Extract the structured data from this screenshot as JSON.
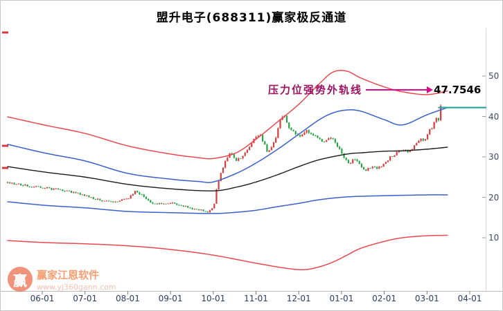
{
  "title": "盟升电子(688311)赢家极反通道",
  "annotation": {
    "label": "压力位强势外轨线",
    "value": "47.7546",
    "arrow_color": "#dc0b8c",
    "label_color": "#9c1160",
    "value_color": "#000000"
  },
  "watermark": {
    "logo_char": "赢",
    "brand": "赢家江恩软件",
    "url": "www.yj360gann.com",
    "logo_color": "#e8502b",
    "brand_color": "#f2641e",
    "url_color": "#f09a7a"
  },
  "axes": {
    "x_labels": [
      "06-01",
      "07-01",
      "08-01",
      "09-01",
      "10-01",
      "11-01",
      "12-01",
      "01-01",
      "02-01",
      "03-01",
      "04-01"
    ],
    "y_labels": [
      "10",
      "20",
      "30",
      "40",
      "50"
    ],
    "x_label_color": "#2b3a66",
    "y_label_color": "#3c4a63"
  },
  "chart_data": {
    "type": "candlestick",
    "title": "盟升电子(688311)赢家极反通道",
    "stock_name": "盟升电子",
    "stock_code": "688311",
    "indicator": "赢家极反通道",
    "pressure_level": 47.7546,
    "ylim": [
      0,
      55
    ],
    "grid": false,
    "legend_position": "none",
    "x_tick_labels": [
      "06-01",
      "07-01",
      "08-01",
      "09-01",
      "10-01",
      "11-01",
      "12-01",
      "01-01",
      "02-01",
      "03-01",
      "04-01"
    ],
    "y_tick_values": [
      10,
      20,
      30,
      40,
      50
    ],
    "layout": {
      "plot_left": 10,
      "plot_right": 700,
      "plot_top": 40,
      "plot_bottom": 420,
      "y_at_price10": 343,
      "y_at_price50": 109,
      "x_tick_first": 60,
      "x_tick_step": 61.7
    },
    "left_marker_ys": [
      46,
      210,
      242
    ],
    "left_marker_color": "#d9363b",
    "series": [
      {
        "name": "upper_outer_red",
        "color": "#e8484d",
        "width": 1.5,
        "points": [
          [
            0.0,
            39.9
          ],
          [
            0.08,
            37.8
          ],
          [
            0.162,
            35.8
          ],
          [
            0.252,
            32.7
          ],
          [
            0.341,
            30.7
          ],
          [
            0.4,
            29.8
          ],
          [
            0.43,
            29.6
          ],
          [
            0.478,
            31.0
          ],
          [
            0.52,
            34.4
          ],
          [
            0.565,
            38.7
          ],
          [
            0.609,
            43.0
          ],
          [
            0.652,
            48.1
          ],
          [
            0.681,
            51.0
          ],
          [
            0.71,
            51.2
          ],
          [
            0.739,
            49.5
          ],
          [
            0.788,
            47.3
          ],
          [
            0.826,
            46.1
          ],
          [
            0.877,
            45.4
          ],
          [
            0.92,
            46.3
          ]
        ]
      },
      {
        "name": "upper_inner_blue",
        "color": "#3a5fc8",
        "width": 1.5,
        "points": [
          [
            0.0,
            33.1
          ],
          [
            0.08,
            30.9
          ],
          [
            0.162,
            29.0
          ],
          [
            0.252,
            25.9
          ],
          [
            0.341,
            24.5
          ],
          [
            0.4,
            23.9
          ],
          [
            0.43,
            23.8
          ],
          [
            0.478,
            25.9
          ],
          [
            0.52,
            28.5
          ],
          [
            0.565,
            31.9
          ],
          [
            0.609,
            35.6
          ],
          [
            0.652,
            39.2
          ],
          [
            0.681,
            40.9
          ],
          [
            0.71,
            41.6
          ],
          [
            0.739,
            41.3
          ],
          [
            0.788,
            39.2
          ],
          [
            0.826,
            37.9
          ],
          [
            0.877,
            40.4
          ],
          [
            0.92,
            42.2
          ]
        ]
      },
      {
        "name": "middle_black",
        "color": "#1a1a1a",
        "width": 1.4,
        "points": [
          [
            0.0,
            27.6
          ],
          [
            0.08,
            26.2
          ],
          [
            0.162,
            25.0
          ],
          [
            0.252,
            23.2
          ],
          [
            0.341,
            22.1
          ],
          [
            0.43,
            21.6
          ],
          [
            0.478,
            22.5
          ],
          [
            0.52,
            23.8
          ],
          [
            0.565,
            25.6
          ],
          [
            0.609,
            27.6
          ],
          [
            0.652,
            29.3
          ],
          [
            0.71,
            30.7
          ],
          [
            0.739,
            31.0
          ],
          [
            0.788,
            31.4
          ],
          [
            0.826,
            31.5
          ],
          [
            0.877,
            31.9
          ],
          [
            0.92,
            32.4
          ]
        ]
      },
      {
        "name": "lower_inner_blue",
        "color": "#3a5fc8",
        "width": 1.5,
        "points": [
          [
            0.0,
            18.9
          ],
          [
            0.08,
            18.0
          ],
          [
            0.162,
            17.4
          ],
          [
            0.252,
            16.5
          ],
          [
            0.341,
            16.2
          ],
          [
            0.43,
            16.0
          ],
          [
            0.478,
            16.3
          ],
          [
            0.52,
            16.8
          ],
          [
            0.565,
            17.7
          ],
          [
            0.609,
            18.5
          ],
          [
            0.652,
            19.4
          ],
          [
            0.71,
            20.1
          ],
          [
            0.788,
            20.4
          ],
          [
            0.877,
            20.6
          ],
          [
            0.92,
            20.6
          ]
        ]
      },
      {
        "name": "lower_outer_red",
        "color": "#e8484d",
        "width": 1.5,
        "points": [
          [
            0.0,
            9.3
          ],
          [
            0.08,
            8.8
          ],
          [
            0.162,
            8.5
          ],
          [
            0.252,
            8.0
          ],
          [
            0.341,
            7.1
          ],
          [
            0.43,
            5.7
          ],
          [
            0.52,
            3.7
          ],
          [
            0.58,
            2.5
          ],
          [
            0.62,
            2.1
          ],
          [
            0.652,
            2.8
          ],
          [
            0.681,
            4.0
          ],
          [
            0.71,
            5.7
          ],
          [
            0.739,
            7.4
          ],
          [
            0.788,
            9.1
          ],
          [
            0.826,
            10.0
          ],
          [
            0.877,
            10.5
          ],
          [
            0.92,
            10.6
          ]
        ]
      },
      {
        "name": "upper_extension_teal",
        "color": "#2fa89b",
        "width": 2.2,
        "points": [
          [
            0.902,
            42.2
          ],
          [
            1.0,
            42.2
          ]
        ]
      }
    ],
    "candles": {
      "count": 198,
      "x_start_frac": 0.0,
      "x_end_frac": 0.906,
      "up_color": "#d93a3c",
      "down_color": "#27a245",
      "noise_seed": 20,
      "noise_pct": 0.012,
      "wick_pct": 0.009,
      "close_path": [
        [
          0.0,
          23.6
        ],
        [
          0.03,
          23.0
        ],
        [
          0.072,
          22.4
        ],
        [
          0.105,
          21.9
        ],
        [
          0.135,
          21.3
        ],
        [
          0.162,
          20.4
        ],
        [
          0.19,
          19.4
        ],
        [
          0.22,
          18.9
        ],
        [
          0.252,
          19.6
        ],
        [
          0.268,
          21.7
        ],
        [
          0.282,
          20.4
        ],
        [
          0.3,
          18.7
        ],
        [
          0.32,
          18.3
        ],
        [
          0.341,
          18.6
        ],
        [
          0.365,
          18.0
        ],
        [
          0.385,
          17.3
        ],
        [
          0.405,
          16.8
        ],
        [
          0.42,
          16.4
        ],
        [
          0.432,
          18.0
        ],
        [
          0.438,
          23.0
        ],
        [
          0.45,
          27.5
        ],
        [
          0.465,
          31.0
        ],
        [
          0.478,
          29.0
        ],
        [
          0.495,
          30.5
        ],
        [
          0.512,
          34.0
        ],
        [
          0.528,
          35.5
        ],
        [
          0.545,
          31.0
        ],
        [
          0.558,
          33.5
        ],
        [
          0.57,
          39.5
        ],
        [
          0.578,
          40.5
        ],
        [
          0.588,
          37.5
        ],
        [
          0.6,
          36.0
        ],
        [
          0.612,
          35.0
        ],
        [
          0.625,
          36.5
        ],
        [
          0.64,
          35.5
        ],
        [
          0.658,
          34.0
        ],
        [
          0.678,
          34.5
        ],
        [
          0.695,
          31.5
        ],
        [
          0.705,
          29.5
        ],
        [
          0.715,
          28.5
        ],
        [
          0.725,
          29.5
        ],
        [
          0.738,
          28.0
        ],
        [
          0.748,
          26.4
        ],
        [
          0.76,
          27.5
        ],
        [
          0.775,
          27.0
        ],
        [
          0.788,
          28.5
        ],
        [
          0.802,
          30.0
        ],
        [
          0.818,
          31.2
        ],
        [
          0.83,
          32.0
        ],
        [
          0.84,
          31.0
        ],
        [
          0.852,
          33.0
        ],
        [
          0.862,
          34.3
        ],
        [
          0.872,
          34.0
        ],
        [
          0.88,
          36.0
        ],
        [
          0.888,
          37.5
        ],
        [
          0.896,
          39.5
        ],
        [
          0.901,
          38.5
        ],
        [
          0.906,
          43.0
        ]
      ]
    }
  }
}
